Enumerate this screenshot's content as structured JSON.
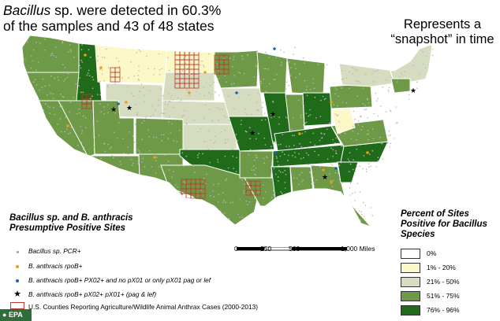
{
  "headline": {
    "line1_italic": "Bacillus",
    "line1_rest": " sp. were detected in 60.3%",
    "line2": "of the samples and 43 of 48 states"
  },
  "snapshot": {
    "line1": "Represents a",
    "line2": "“snapshot” in time"
  },
  "sites_legend": {
    "title_line1": "Bacillus sp. and B. anthracis",
    "title_line2": "Presumptive Positive Sites",
    "items": [
      {
        "label": "Bacillus sp. PCR+",
        "symbol": "small-gray-dot-icon"
      },
      {
        "label": "B. anthracis rpoB+",
        "symbol": "orange-dot-icon"
      },
      {
        "label": "B. anthracis rpoB+ PX02+ and no pX01 or only pX01 pag or lef",
        "symbol": "blue-dot-icon"
      },
      {
        "label": "B. anthracis rpoB+ pX02+ pX01+ (pag & lef)",
        "symbol": "star-icon"
      },
      {
        "label": "U.S. Counties Reporting Agriculture/Wildlife Animal Anthrax Cases (2000-2013)",
        "symbol": "red-outline-box-icon"
      }
    ]
  },
  "percent_legend": {
    "title_line1": "Percent of Sites",
    "title_line2": "Positive for Bacillus",
    "title_line3": "Species",
    "items": [
      {
        "label": "0%",
        "color": "#ffffff"
      },
      {
        "label": "1% - 20%",
        "color": "#fbf7c6"
      },
      {
        "label": "21% - 50%",
        "color": "#d6dcc0"
      },
      {
        "label": "51% - 75%",
        "color": "#6e9a48"
      },
      {
        "label": "76% - 96%",
        "color": "#1f6b1a"
      }
    ]
  },
  "scale": {
    "labels": [
      "0",
      "250",
      "500",
      "1,000 Miles"
    ]
  },
  "credit": "EPA",
  "colors": {
    "state_border": "#ffffff",
    "county_outline": "#c0392b",
    "site_dot": "#b8b8b8"
  }
}
